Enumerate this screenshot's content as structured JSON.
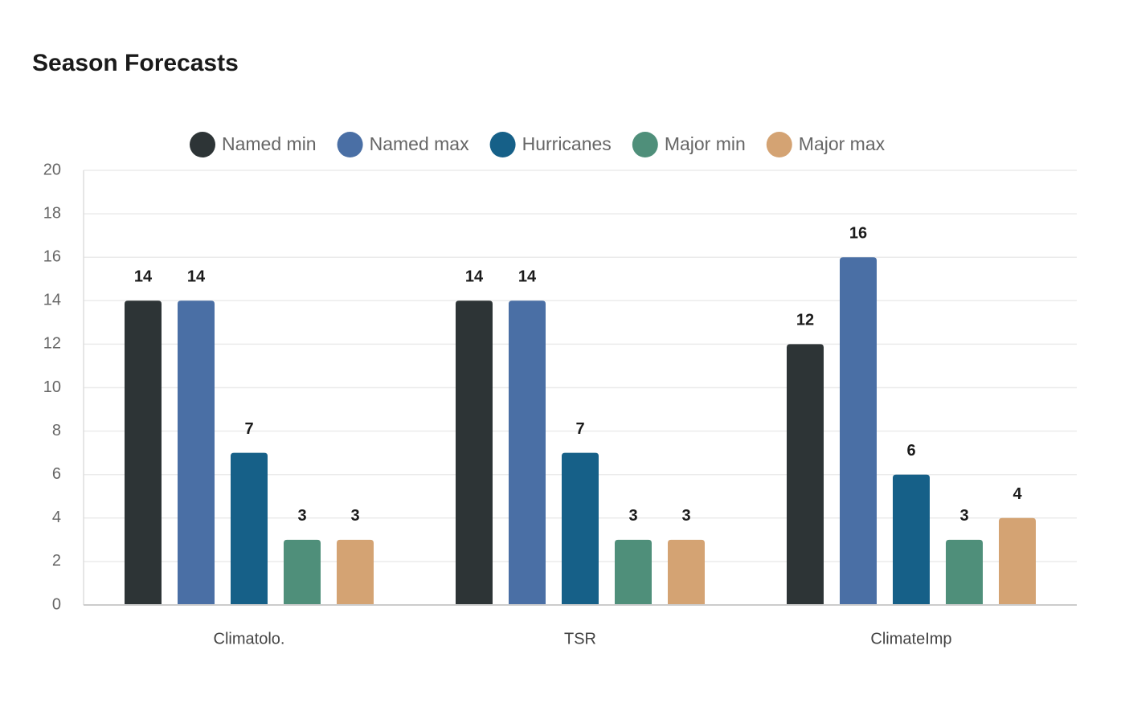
{
  "chart_data": {
    "type": "bar",
    "title": "Season Forecasts",
    "categories": [
      "Climatolo.",
      "TSR",
      "ClimateImp"
    ],
    "series": [
      {
        "name": "Named min",
        "color": "#2d3436",
        "values": [
          14,
          14,
          12
        ]
      },
      {
        "name": "Named max",
        "color": "#4a6fa5",
        "values": [
          14,
          14,
          16
        ]
      },
      {
        "name": "Hurricanes",
        "color": "#166088",
        "values": [
          7,
          7,
          6
        ]
      },
      {
        "name": "Major min",
        "color": "#4f8f7a",
        "values": [
          3,
          3,
          3
        ]
      },
      {
        "name": "Major max",
        "color": "#d4a373",
        "values": [
          3,
          3,
          4
        ]
      }
    ],
    "ylim": [
      0,
      20
    ],
    "yticks": [
      0,
      2,
      4,
      6,
      8,
      10,
      12,
      14,
      16,
      18,
      20
    ],
    "grid": true,
    "legend": "top"
  }
}
